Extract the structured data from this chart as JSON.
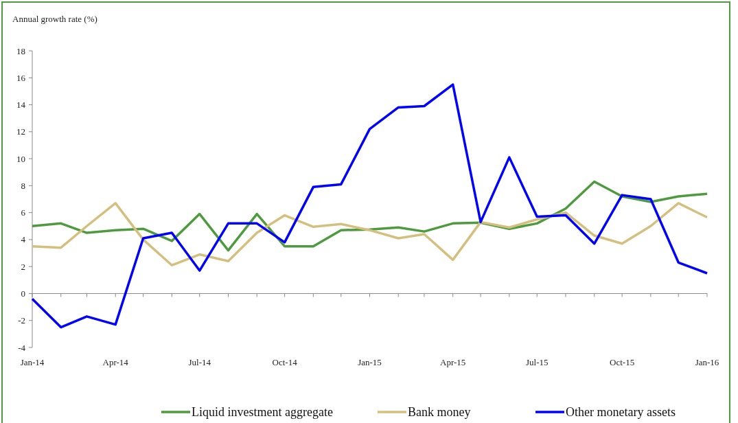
{
  "chart_data": {
    "type": "line",
    "ylabel": "Annual growth rate (%)",
    "x": [
      "2014-01",
      "2014-02",
      "2014-03",
      "2014-04",
      "2014-05",
      "2014-06",
      "2014-07",
      "2014-08",
      "2014-09",
      "2014-10",
      "2014-11",
      "2014-12",
      "2015-01",
      "2015-02",
      "2015-03",
      "2015-04",
      "2015-05",
      "2015-06",
      "2015-07",
      "2015-08",
      "2015-09",
      "2015-10",
      "2015-11",
      "2015-12",
      "2016-01"
    ],
    "series": [
      {
        "name": "Liquid investment aggregate",
        "color": "#4e9a3f",
        "values": [
          5.0,
          5.2,
          4.5,
          4.7,
          4.8,
          3.9,
          5.9,
          3.2,
          5.9,
          3.5,
          3.5,
          4.7,
          4.75,
          4.9,
          4.6,
          5.2,
          5.25,
          4.8,
          5.2,
          6.3,
          8.3,
          7.2,
          6.8,
          7.2,
          7.4
        ]
      },
      {
        "name": "Bank money",
        "color": "#d4bf7f",
        "values": [
          3.5,
          3.4,
          5.0,
          6.7,
          4.0,
          2.1,
          2.9,
          2.4,
          4.5,
          5.8,
          4.95,
          5.15,
          4.7,
          4.1,
          4.4,
          2.5,
          5.3,
          4.9,
          5.5,
          6.0,
          4.3,
          3.7,
          5.0,
          6.7,
          5.65
        ]
      },
      {
        "name": "Other monetary assets",
        "color": "#0000ff",
        "values": [
          -0.4,
          -2.5,
          -1.7,
          -2.3,
          4.1,
          4.5,
          1.7,
          5.2,
          5.2,
          3.8,
          7.9,
          8.1,
          12.2,
          13.8,
          13.9,
          15.5,
          5.3,
          10.1,
          5.7,
          5.8,
          3.7,
          7.3,
          7.0,
          2.3,
          1.5
        ]
      }
    ],
    "xlim": [
      "2014-01",
      "2016-01"
    ],
    "xticks": [
      {
        "value": "2014-01",
        "label": "Jan-14"
      },
      {
        "value": "2014-02",
        "label": null
      },
      {
        "value": "2014-03",
        "label": null
      },
      {
        "value": "2014-04",
        "label": "Apr-14"
      },
      {
        "value": "2014-05",
        "label": null
      },
      {
        "value": "2014-06",
        "label": null
      },
      {
        "value": "2014-07",
        "label": "Jul-14"
      },
      {
        "value": "2014-08",
        "label": null
      },
      {
        "value": "2014-09",
        "label": null
      },
      {
        "value": "2014-10",
        "label": "Oct-14"
      },
      {
        "value": "2014-11",
        "label": null
      },
      {
        "value": "2014-12",
        "label": null
      },
      {
        "value": "2015-01",
        "label": "Jan-15"
      },
      {
        "value": "2015-02",
        "label": null
      },
      {
        "value": "2015-03",
        "label": null
      },
      {
        "value": "2015-04",
        "label": "Apr-15"
      },
      {
        "value": "2015-05",
        "label": null
      },
      {
        "value": "2015-06",
        "label": null
      },
      {
        "value": "2015-07",
        "label": "Jul-15"
      },
      {
        "value": "2015-08",
        "label": null
      },
      {
        "value": "2015-09",
        "label": null
      },
      {
        "value": "2015-10",
        "label": "Oct-15"
      },
      {
        "value": "2015-11",
        "label": null
      },
      {
        "value": "2015-12",
        "label": null
      },
      {
        "value": "2016-01",
        "label": "Jan-16"
      }
    ],
    "ylim": [
      -4,
      18
    ],
    "yticks": [
      -4,
      -2,
      0,
      2,
      4,
      6,
      8,
      10,
      12,
      14,
      16,
      18
    ],
    "legend": "bottom",
    "marker": "none",
    "line_style": "solid"
  }
}
